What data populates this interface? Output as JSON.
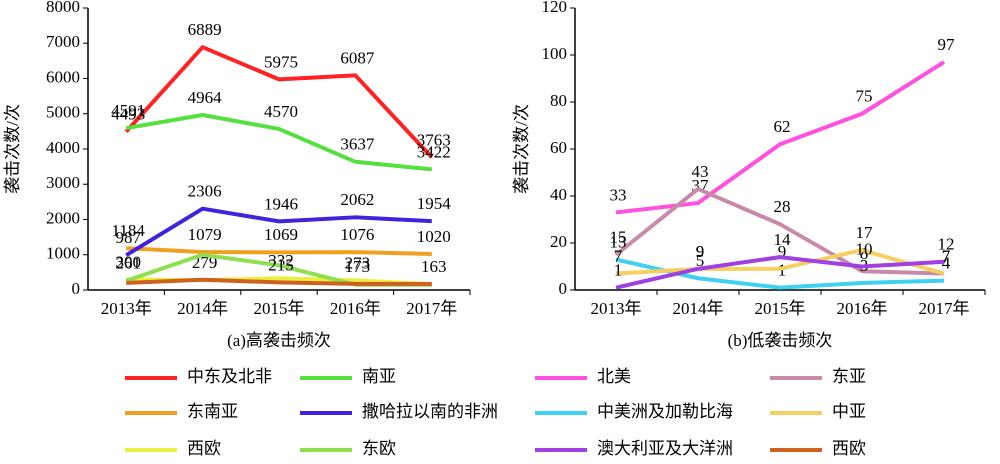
{
  "chart_data": [
    {
      "type": "line",
      "caption": "(a)高袭击频次",
      "ylabel": "袭击次数/次",
      "categories": [
        "2013年",
        "2014年",
        "2015年",
        "2016年",
        "2017年"
      ],
      "ylim": [
        0,
        8000
      ],
      "yticks": [
        0,
        1000,
        2000,
        3000,
        4000,
        5000,
        6000,
        7000,
        8000
      ],
      "series": [
        {
          "name": "中东及北非",
          "color": "#ff2222",
          "values": [
            4493,
            6889,
            5975,
            6087,
            3763
          ]
        },
        {
          "name": "南亚",
          "color": "#55e040",
          "values": [
            4591,
            4964,
            4570,
            3637,
            3422
          ]
        },
        {
          "name": "东南亚",
          "color": "#f0a020",
          "values": [
            1184,
            1079,
            1069,
            1076,
            1020
          ]
        },
        {
          "name": "撒哈拉以南的非洲",
          "color": "#4422dd",
          "values": [
            987,
            2306,
            1946,
            2062,
            1954
          ]
        },
        {
          "name": "西欧",
          "color": "#e8f040",
          "values": [
            300,
            279,
            332,
            273,
            163
          ]
        },
        {
          "name": "东欧",
          "color": "#8fe050",
          "values": [
            261,
            1000,
            700,
            150,
            150
          ],
          "value_labels": [
            "261",
            null,
            null,
            null,
            null
          ]
        },
        {
          "name": "西欧",
          "color": "#d06020",
          "values": [
            200,
            290,
            215,
            173,
            170
          ],
          "value_labels": [
            null,
            null,
            "215",
            "173",
            null
          ]
        }
      ]
    },
    {
      "type": "line",
      "caption": "(b)低袭击频次",
      "ylabel": "袭击次数/次",
      "categories": [
        "2013年",
        "2014年",
        "2015年",
        "2016年",
        "2017年"
      ],
      "ylim": [
        0,
        120
      ],
      "yticks": [
        0,
        20,
        40,
        60,
        80,
        100,
        120
      ],
      "series": [
        {
          "name": "北美",
          "color": "#ff50e0",
          "values": [
            33,
            37,
            62,
            75,
            97
          ]
        },
        {
          "name": "东亚",
          "color": "#c88aa8",
          "values": [
            15,
            43,
            28,
            8,
            7
          ]
        },
        {
          "name": "中美洲及加勒比海",
          "color": "#40d0f0",
          "values": [
            13,
            5,
            1,
            3,
            4
          ]
        },
        {
          "name": "中亚",
          "color": "#f5d060",
          "values": [
            7,
            9,
            9,
            17,
            7
          ]
        },
        {
          "name": "澳大利亚及大洋洲",
          "color": "#a040e0",
          "values": [
            1,
            9,
            14,
            10,
            12
          ]
        }
      ]
    }
  ]
}
